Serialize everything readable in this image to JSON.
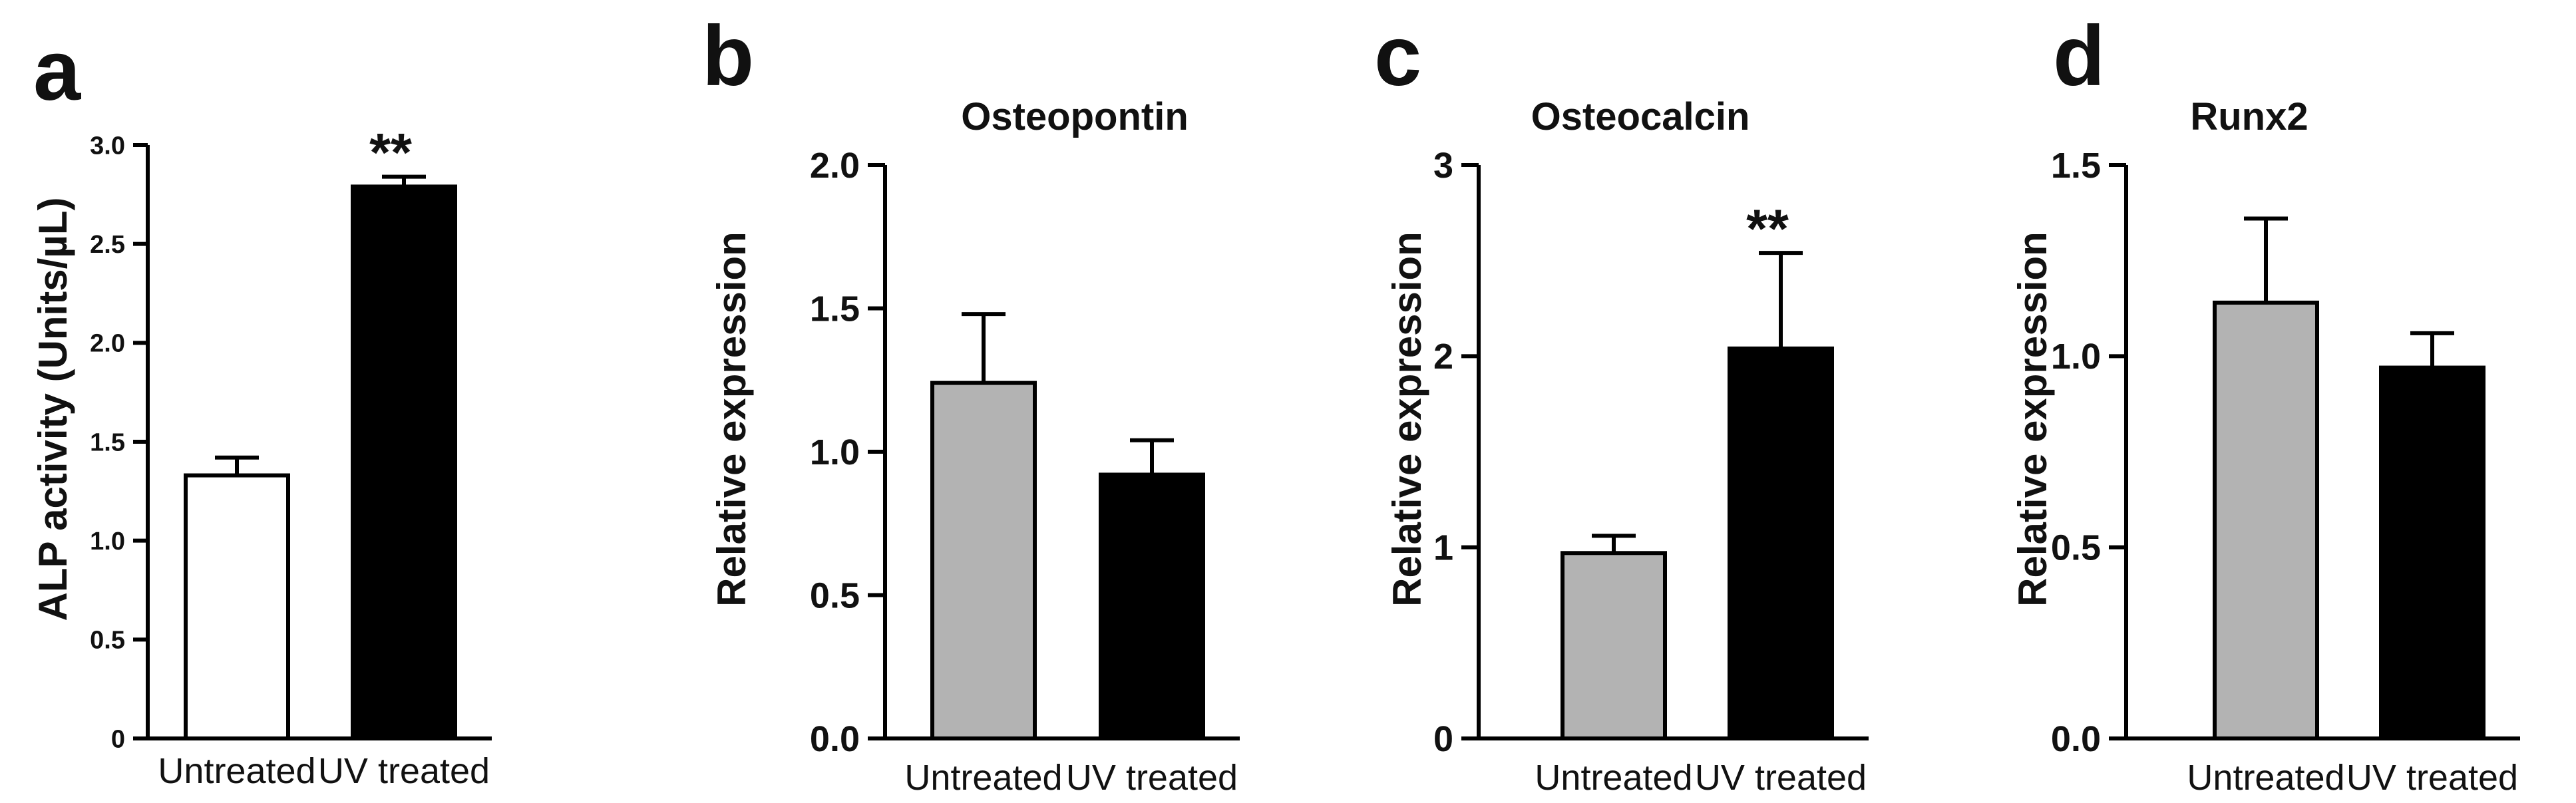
{
  "chart_data": [
    {
      "type": "bar",
      "panel": "a",
      "title": "",
      "ylabel": "ALP activity (Units/µL)",
      "xlabel": "",
      "categories": [
        "Untreated",
        "UV treated"
      ],
      "values": [
        1.33,
        2.79
      ],
      "errors": [
        0.09,
        0.05
      ],
      "colors": [
        "#ffffff",
        "#000000"
      ],
      "significance": [
        "",
        "**"
      ],
      "ylim": [
        0,
        3.0
      ],
      "yticks": [
        "0",
        "0.5",
        "1.0",
        "1.5",
        "2.0",
        "2.5",
        "3.0"
      ],
      "yticks_values": [
        0,
        0.5,
        1.0,
        1.5,
        2.0,
        2.5,
        3.0
      ]
    },
    {
      "type": "bar",
      "panel": "b",
      "title": "Osteopontin",
      "ylabel": "Relative expression",
      "xlabel": "",
      "categories": [
        "Untreated",
        "UV treated"
      ],
      "values": [
        1.24,
        0.92
      ],
      "errors": [
        0.24,
        0.12
      ],
      "colors": [
        "#b3b3b3",
        "#000000"
      ],
      "significance": [
        "",
        ""
      ],
      "ylim": [
        0,
        2.0
      ],
      "yticks": [
        "0.0",
        "0.5",
        "1.0",
        "1.5",
        "2.0"
      ],
      "yticks_values": [
        0,
        0.5,
        1.0,
        1.5,
        2.0
      ]
    },
    {
      "type": "bar",
      "panel": "c",
      "title": "Osteocalcin",
      "ylabel": "Relative expression",
      "xlabel": "",
      "categories": [
        "Untreated",
        "UV treated"
      ],
      "values": [
        0.97,
        2.04
      ],
      "errors": [
        0.09,
        0.5
      ],
      "colors": [
        "#b3b3b3",
        "#000000"
      ],
      "significance": [
        "",
        "**"
      ],
      "ylim": [
        0,
        3
      ],
      "yticks": [
        "0",
        "1",
        "2",
        "3"
      ],
      "yticks_values": [
        0,
        1,
        2,
        3
      ]
    },
    {
      "type": "bar",
      "panel": "d",
      "title": "Runx2",
      "ylabel": "Relative expression",
      "xlabel": "",
      "categories": [
        "Untreated",
        "UV treated"
      ],
      "values": [
        1.14,
        0.97
      ],
      "errors": [
        0.22,
        0.09
      ],
      "colors": [
        "#b3b3b3",
        "#000000"
      ],
      "significance": [
        "",
        ""
      ],
      "ylim": [
        0,
        1.5
      ],
      "yticks": [
        "0.0",
        "0.5",
        "1.0",
        "1.5"
      ],
      "yticks_values": [
        0,
        0.5,
        1.0,
        1.5
      ]
    }
  ]
}
